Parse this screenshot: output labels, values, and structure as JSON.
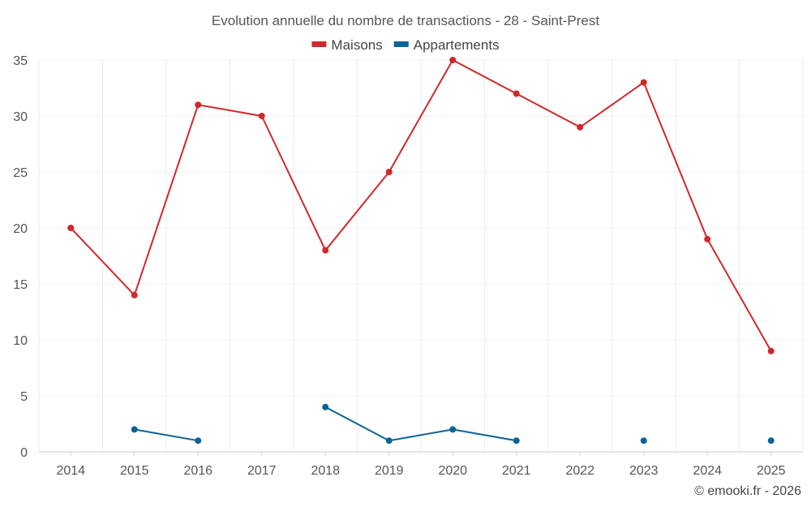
{
  "chart_data": {
    "type": "line",
    "title": "Evolution annuelle du nombre de transactions - 28 - Saint-Prest",
    "categories": [
      "2014",
      "2015",
      "2016",
      "2017",
      "2018",
      "2019",
      "2020",
      "2021",
      "2022",
      "2023",
      "2024",
      "2025"
    ],
    "series": [
      {
        "name": "Maisons",
        "color": "#d0282b",
        "values": [
          20,
          14,
          31,
          30,
          18,
          25,
          35,
          32,
          29,
          33,
          19,
          9
        ]
      },
      {
        "name": "Appartements",
        "color": "#0b6399",
        "values": [
          null,
          2,
          1,
          null,
          4,
          1,
          2,
          1,
          null,
          1,
          null,
          1
        ]
      }
    ],
    "ylim": [
      0,
      35
    ],
    "yticks": [
      0,
      5,
      10,
      15,
      20,
      25,
      30,
      35
    ],
    "xlabel": "",
    "ylabel": "",
    "grid": true,
    "legend_position": "top-center"
  },
  "credit": "© emooki.fr - 2026"
}
